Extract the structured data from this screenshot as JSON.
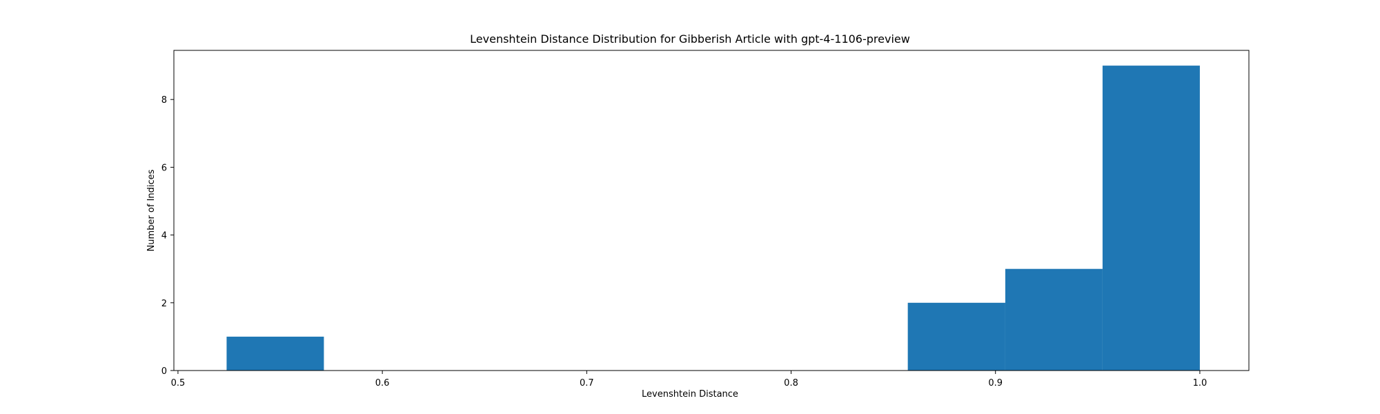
{
  "chart_data": {
    "type": "bar",
    "title": "Levenshtein Distance Distribution for Gibberish Article with gpt-4-1106-preview",
    "xlabel": "Levenshtein Distance",
    "ylabel": "Number of Indices",
    "xlim": [
      0.498,
      1.024
    ],
    "ylim": [
      0,
      9.45
    ],
    "x_ticks": [
      0.5,
      0.6,
      0.7,
      0.8,
      0.9,
      1.0
    ],
    "x_tick_labels": [
      "0.5",
      "0.6",
      "0.7",
      "0.8",
      "0.9",
      "1.0"
    ],
    "y_ticks": [
      0,
      2,
      4,
      6,
      8
    ],
    "y_tick_labels": [
      "0",
      "2",
      "4",
      "6",
      "8"
    ],
    "bins": [
      {
        "x0": 0.5238,
        "x1": 0.5714,
        "count": 1
      },
      {
        "x0": 0.5714,
        "x1": 0.619,
        "count": 0
      },
      {
        "x0": 0.619,
        "x1": 0.6667,
        "count": 0
      },
      {
        "x0": 0.6667,
        "x1": 0.7143,
        "count": 0
      },
      {
        "x0": 0.7143,
        "x1": 0.7619,
        "count": 0
      },
      {
        "x0": 0.7619,
        "x1": 0.8095,
        "count": 0
      },
      {
        "x0": 0.8095,
        "x1": 0.8571,
        "count": 0
      },
      {
        "x0": 0.8571,
        "x1": 0.9048,
        "count": 2
      },
      {
        "x0": 0.9048,
        "x1": 0.9524,
        "count": 3
      },
      {
        "x0": 0.9524,
        "x1": 1.0,
        "count": 9
      }
    ],
    "grid": false,
    "legend": "none",
    "bar_color": "#1f77b4"
  }
}
